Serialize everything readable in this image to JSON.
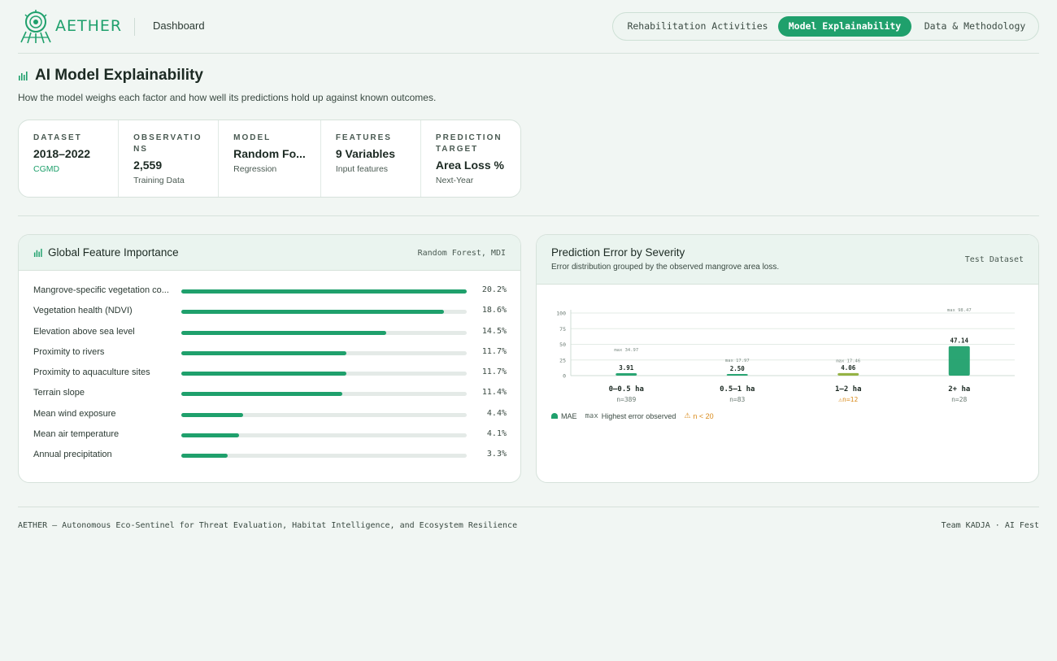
{
  "brand": {
    "name": "AETHER",
    "section": "Dashboard"
  },
  "nav": {
    "tabs": [
      {
        "label": "Rehabilitation Activities",
        "active": false
      },
      {
        "label": "Model Explainability",
        "active": true
      },
      {
        "label": "Data & Methodology",
        "active": false
      }
    ]
  },
  "page": {
    "title": "AI Model Explainability",
    "subtitle": "How the model weighs each factor and how well its predictions hold up against known outcomes."
  },
  "stats": [
    {
      "label": "Dataset",
      "value": "2018–2022",
      "sub": "CGMD"
    },
    {
      "label": "Observations",
      "value": "2,559",
      "sub": "Training Data"
    },
    {
      "label": "Model",
      "value": "Random Fo...",
      "sub": "Regression"
    },
    {
      "label": "Features",
      "value": "9 Variables",
      "sub": "Input features"
    },
    {
      "label": "Prediction Target",
      "value": "Area Loss %",
      "sub": "Next-Year"
    }
  ],
  "feature_importance": {
    "title": "Global Feature Importance",
    "tag": "Random Forest, MDI",
    "items": [
      {
        "name": "Mangrove-specific vegetation co...",
        "value": 20.2,
        "label": "20.2%"
      },
      {
        "name": "Vegetation health (NDVI)",
        "value": 18.6,
        "label": "18.6%"
      },
      {
        "name": "Elevation above sea level",
        "value": 14.5,
        "label": "14.5%"
      },
      {
        "name": "Proximity to rivers",
        "value": 11.7,
        "label": "11.7%"
      },
      {
        "name": "Proximity to aquaculture sites",
        "value": 11.7,
        "label": "11.7%"
      },
      {
        "name": "Terrain slope",
        "value": 11.4,
        "label": "11.4%"
      },
      {
        "name": "Mean wind exposure",
        "value": 4.4,
        "label": "4.4%"
      },
      {
        "name": "Mean air temperature",
        "value": 4.1,
        "label": "4.1%"
      },
      {
        "name": "Annual precipitation",
        "value": 3.3,
        "label": "3.3%"
      }
    ]
  },
  "prediction_error": {
    "title": "Prediction Error by Severity",
    "description": "Error distribution grouped by the observed mangrove area loss.",
    "tag": "Test Dataset",
    "legend": {
      "mae": "MAE",
      "max_key": "max",
      "max_text": "Highest error observed",
      "warn": "n < 20"
    },
    "colors": {
      "bar": "#1fa06c",
      "bar_warn": "#8fae3a",
      "warn": "#d98a1a"
    }
  },
  "chart_data": {
    "type": "bar",
    "categories": [
      "0–0.5 ha",
      "0.5–1 ha",
      "1–2 ha",
      "2+ ha"
    ],
    "values": [
      3.91,
      2.5,
      4.06,
      47.14
    ],
    "value_labels": [
      "3.91",
      "2.50",
      "4.06",
      "47.14"
    ],
    "max_labels": [
      "max 34.97",
      "max 17.97",
      "max 17.46",
      "max 98.47"
    ],
    "max_values": [
      34.97,
      17.97,
      17.46,
      98.47
    ],
    "counts": [
      "n=389",
      "n=83",
      "n=12",
      "n=28"
    ],
    "low_sample": [
      false,
      false,
      true,
      false
    ],
    "ylim": [
      0,
      100
    ],
    "yticks": [
      0,
      25,
      50,
      75,
      100
    ],
    "grid": true
  },
  "footer": {
    "left": "AETHER — Autonomous Eco-Sentinel for Threat Evaluation, Habitat Intelligence, and Ecosystem Resilience",
    "right": "Team KADJA · AI Fest"
  }
}
